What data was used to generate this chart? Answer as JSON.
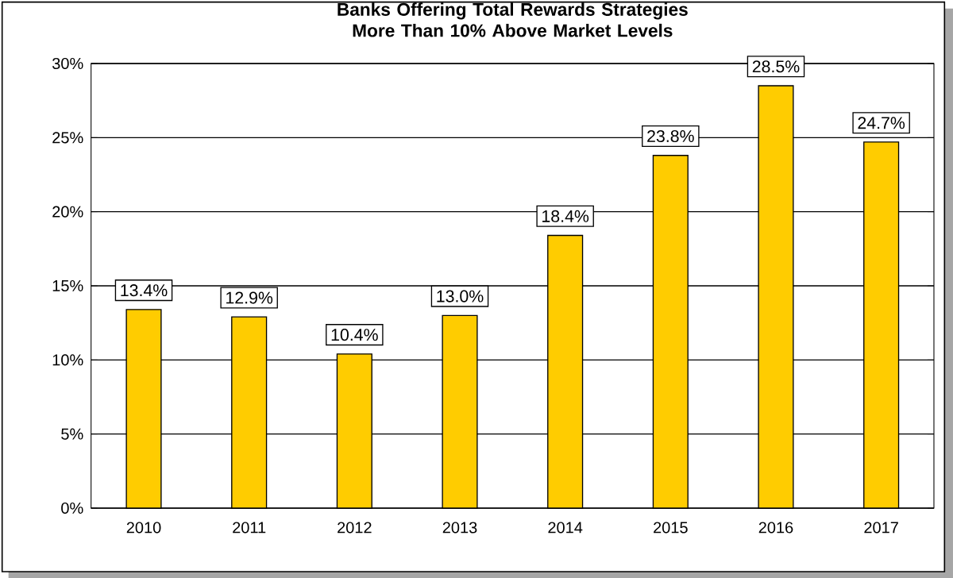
{
  "chart_data": {
    "type": "bar",
    "title": "Banks Offering Total Rewards Strategies More Than 10% Above Market Levels",
    "categories": [
      "2010",
      "2011",
      "2012",
      "2013",
      "2014",
      "2015",
      "2016",
      "2017"
    ],
    "values": [
      13.4,
      12.9,
      10.4,
      13.0,
      18.4,
      23.8,
      28.5,
      24.7
    ],
    "value_labels": [
      "13.4%",
      "12.9%",
      "10.4%",
      "13.0%",
      "18.4%",
      "23.8%",
      "28.5%",
      "24.7%"
    ],
    "color": "#ffcc00",
    "ylim": [
      0,
      30
    ],
    "yticks": [
      {
        "value": 0,
        "label": "0%"
      },
      {
        "value": 5,
        "label": "5%"
      },
      {
        "value": 10,
        "label": "10%"
      },
      {
        "value": 15,
        "label": "15%"
      },
      {
        "value": 20,
        "label": "20%"
      },
      {
        "value": 25,
        "label": "25%"
      },
      {
        "value": 30,
        "label": "30%"
      }
    ],
    "grid": "y"
  }
}
